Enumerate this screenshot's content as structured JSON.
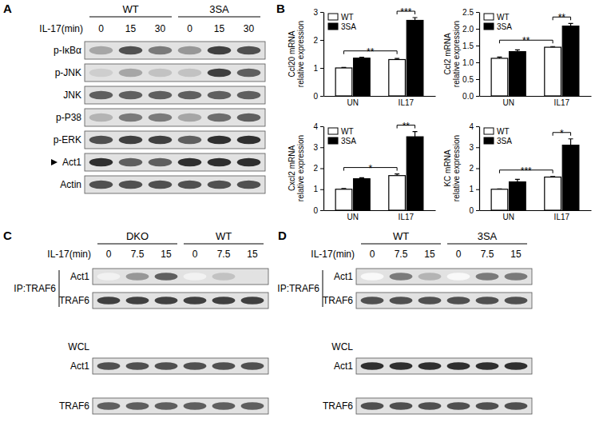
{
  "panel_labels": [
    "A",
    "B",
    "C",
    "D"
  ],
  "chart_data": [
    {
      "type": "bar",
      "categories": [
        "UN",
        "IL17"
      ],
      "ylabel": [
        "Ccl20 mRNA",
        "relative expression"
      ],
      "ylim": [
        0,
        3
      ],
      "yticks": [
        0,
        1,
        2,
        3
      ],
      "legend": "upper left",
      "series": [
        {
          "name": "WT",
          "color": "#ffffff",
          "values": [
            1.0,
            1.3
          ],
          "errors": [
            0.02,
            0.04
          ]
        },
        {
          "name": "3SA",
          "color": "#000000",
          "values": [
            1.35,
            2.7
          ],
          "errors": [
            0.03,
            0.1
          ]
        }
      ],
      "annotations": [
        {
          "text": "**",
          "from": [
            0,
            0
          ],
          "to": [
            0,
            1
          ]
        },
        {
          "text": "***",
          "from": [
            0,
            1
          ],
          "to": [
            1,
            1
          ]
        }
      ]
    },
    {
      "type": "bar",
      "categories": [
        "UN",
        "IL17"
      ],
      "ylabel": [
        "Ccl2 mRNA",
        "relative expression"
      ],
      "ylim": [
        0,
        2.5
      ],
      "yticks": [
        {
          "value": 0,
          "label": "0.0"
        },
        0.5,
        {
          "value": 1,
          "label": "1.0"
        },
        1.5,
        {
          "value": 2,
          "label": "2.0"
        },
        2.5
      ],
      "legend": "upper left",
      "series": [
        {
          "name": "WT",
          "color": "#ffffff",
          "values": [
            1.12,
            1.45
          ],
          "errors": [
            0.04,
            0.02
          ]
        },
        {
          "name": "3SA",
          "color": "#000000",
          "values": [
            1.32,
            2.08
          ],
          "errors": [
            0.05,
            0.08
          ]
        }
      ],
      "annotations": [
        {
          "text": "**",
          "from": [
            0,
            0
          ],
          "to": [
            0,
            1
          ]
        },
        {
          "text": "**",
          "from": [
            0,
            1
          ],
          "to": [
            1,
            1
          ]
        }
      ]
    },
    {
      "type": "bar",
      "categories": [
        "UN",
        "IL17"
      ],
      "ylabel": [
        "Cxcl2 mRNA",
        "relative expression"
      ],
      "ylim": [
        0,
        4
      ],
      "yticks": [
        0,
        1,
        2,
        3,
        4
      ],
      "legend": "upper left",
      "series": [
        {
          "name": "WT",
          "color": "#ffffff",
          "values": [
            1.0,
            1.65
          ],
          "errors": [
            0.03,
            0.08
          ]
        },
        {
          "name": "3SA",
          "color": "#000000",
          "values": [
            1.5,
            3.5
          ],
          "errors": [
            0.05,
            0.25
          ]
        }
      ],
      "annotations": [
        {
          "text": "*",
          "from": [
            0,
            0
          ],
          "to": [
            0,
            1
          ]
        },
        {
          "text": "**",
          "from": [
            0,
            1
          ],
          "to": [
            1,
            1
          ]
        }
      ]
    },
    {
      "type": "bar",
      "categories": [
        "UN",
        "IL17"
      ],
      "ylabel": [
        "KC mRNA",
        "relative expression"
      ],
      "ylim": [
        0,
        4
      ],
      "yticks": [
        0,
        1,
        2,
        3,
        4
      ],
      "legend": "upper left",
      "series": [
        {
          "name": "WT",
          "color": "#ffffff",
          "values": [
            1.0,
            1.58
          ],
          "errors": [
            0.02,
            0.03
          ]
        },
        {
          "name": "3SA",
          "color": "#000000",
          "values": [
            1.35,
            3.1
          ],
          "errors": [
            0.12,
            0.3
          ]
        }
      ],
      "annotations": [
        {
          "text": "***",
          "from": [
            0,
            0
          ],
          "to": [
            0,
            1
          ]
        },
        {
          "text": "*",
          "from": [
            0,
            1
          ],
          "to": [
            1,
            1
          ]
        }
      ]
    }
  ],
  "blots": [
    {
      "groups": [
        "WT",
        "3SA"
      ],
      "time_label": "IL-17(min)",
      "times": [
        0,
        15,
        30
      ],
      "sections": [
        {
          "rows": [
            {
              "name": "p-IκBα",
              "intensity": [
                0.45,
                0.75,
                0.6,
                0.5,
                0.8,
                0.75
              ]
            },
            {
              "name": "p-JNK",
              "intensity": [
                0.3,
                0.45,
                0.35,
                0.35,
                0.8,
                0.7
              ]
            },
            {
              "name": "JNK",
              "intensity": [
                0.7,
                0.7,
                0.7,
                0.7,
                0.7,
                0.7
              ]
            },
            {
              "name": "p-P38",
              "intensity": [
                0.4,
                0.6,
                0.6,
                0.45,
                0.65,
                0.7
              ]
            },
            {
              "name": "p-ERK",
              "intensity": [
                0.75,
                0.8,
                0.8,
                0.7,
                0.85,
                0.85
              ]
            },
            {
              "name": "Act1",
              "marker": "triangle",
              "intensity": [
                0.85,
                0.7,
                0.7,
                0.85,
                0.85,
                0.85
              ]
            },
            {
              "name": "Actin",
              "intensity": [
                0.75,
                0.75,
                0.75,
                0.75,
                0.75,
                0.75
              ]
            }
          ]
        }
      ]
    },
    {
      "groups": [
        "DKO",
        "WT"
      ],
      "time_label": "IL-17(min)",
      "times": [
        0,
        7.5,
        15
      ],
      "sections": [
        {
          "title": "IP:TRAF6",
          "rows": [
            {
              "name": "Act1",
              "intensity": [
                0.1,
                0.5,
                0.7,
                0.1,
                0.35,
                0.2
              ]
            },
            {
              "name": "TRAF6",
              "intensity": [
                0.8,
                0.8,
                0.8,
                0.8,
                0.8,
                0.8
              ]
            }
          ]
        },
        {
          "title": "WCL",
          "rows": [
            {
              "name": "Act1",
              "intensity": [
                0.75,
                0.75,
                0.75,
                0.75,
                0.75,
                0.75
              ]
            },
            {
              "name": "TRAF6",
              "intensity": [
                0.7,
                0.7,
                0.7,
                0.7,
                0.7,
                0.7
              ]
            }
          ]
        }
      ]
    },
    {
      "groups": [
        "WT",
        "3SA"
      ],
      "time_label": "IL-17(min)",
      "times": [
        0,
        7.5,
        15
      ],
      "sections": [
        {
          "title": "IP:TRAF6",
          "rows": [
            {
              "name": "Act1",
              "intensity": [
                0.05,
                0.6,
                0.4,
                0.05,
                0.6,
                0.6
              ]
            },
            {
              "name": "TRAF6",
              "intensity": [
                0.75,
                0.75,
                0.75,
                0.75,
                0.75,
                0.75
              ]
            }
          ]
        },
        {
          "title": "WCL",
          "rows": [
            {
              "name": "Act1",
              "intensity": [
                0.85,
                0.85,
                0.85,
                0.85,
                0.85,
                0.85
              ]
            },
            {
              "name": "TRAF6",
              "intensity": [
                0.75,
                0.75,
                0.75,
                0.75,
                0.75,
                0.75
              ]
            }
          ]
        }
      ]
    }
  ]
}
